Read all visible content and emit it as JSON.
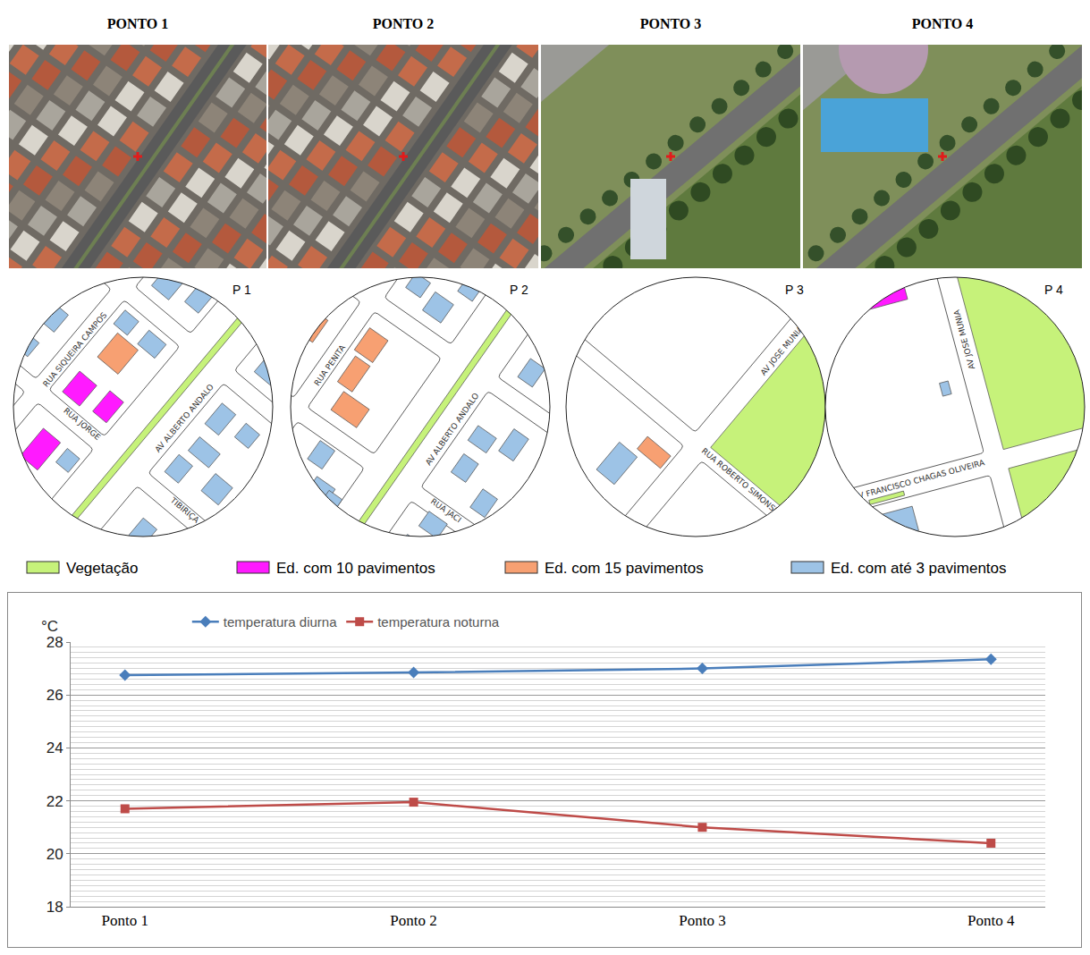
{
  "photos": {
    "titles": [
      "PONTO 1",
      "PONTO 2",
      "PONTO 3",
      "PONTO 4"
    ]
  },
  "maps": [
    {
      "label": "P 1",
      "streets": [
        "RUA SIQUEIRA CAMPOS",
        "AV ALBERTO ANDALO",
        "RUA JORGE",
        "TIBIRIÇA"
      ]
    },
    {
      "label": "P 2",
      "streets": [
        "RUA PENITA",
        "AV ALBERTO ANDALO",
        "RUA JACI"
      ]
    },
    {
      "label": "P 3",
      "streets": [
        "RUA ROBERTO SIMONSEN",
        "AV JOSE MUNIA"
      ]
    },
    {
      "label": "P 4",
      "streets": [
        "AV JOSE MUNIA",
        "AV FRANCISCO CHAGAS OLIVEIRA"
      ]
    }
  ],
  "map_legend": [
    {
      "label": "Vegetação",
      "color": "#c6f27a"
    },
    {
      "label": "Ed. com 10 pavimentos",
      "color": "#ff1aff"
    },
    {
      "label": "Ed. com 15 pavimentos",
      "color": "#f7a072"
    },
    {
      "label": "Ed. com até 3 pavimentos",
      "color": "#9dc3e6"
    }
  ],
  "chart_data": {
    "type": "line",
    "categories": [
      "Ponto 1",
      "Ponto 2",
      "Ponto 3",
      "Ponto 4"
    ],
    "ylabel": "°C",
    "series": [
      {
        "name": "temperatura diurna",
        "color": "#4a7ebb",
        "marker": "diamond",
        "values": [
          26.75,
          26.85,
          27.0,
          27.35
        ]
      },
      {
        "name": "temperatura noturna",
        "color": "#be4b48",
        "marker": "square",
        "values": [
          21.7,
          21.95,
          21.0,
          20.4
        ]
      }
    ],
    "ylim": [
      18,
      28
    ],
    "yticks": [
      18,
      20,
      22,
      24,
      26,
      28
    ],
    "grid": true,
    "legend": "top"
  }
}
